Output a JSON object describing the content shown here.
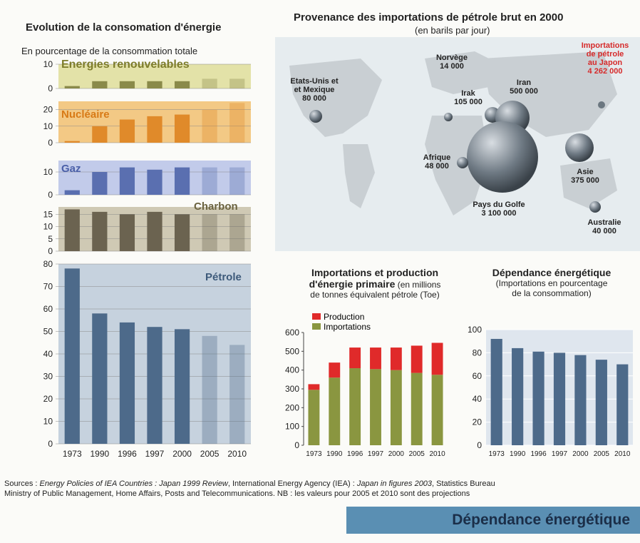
{
  "left": {
    "title": "Evolution de la consomation d'énergie",
    "subtitle": "En pourcentage de la consommation totale",
    "panels": {
      "renouvelables": "Energies renouvelables",
      "nucleaire": "Nucléaire",
      "gaz": "Gaz",
      "charbon": "Charbon",
      "petrole": "Pétrole"
    }
  },
  "map": {
    "title": "Provenance des importations de pétrole brut en 2000",
    "subtitle": "(en barils par jour)",
    "labels": {
      "etats_unis": [
        "Etats-Unis et",
        "et Mexique",
        "80 000"
      ],
      "norvege": [
        "Norvège",
        "14 000"
      ],
      "iran": [
        "Iran",
        "500 000"
      ],
      "irak": [
        "Irak",
        "105 000"
      ],
      "japon": [
        "Importations",
        "de pétrole",
        "au Japon",
        "4 262 000"
      ],
      "afrique": [
        "Afrique",
        "48 000"
      ],
      "asie": [
        "Asie",
        "375 000"
      ],
      "golfe": [
        "Pays du Golfe",
        "3 100 000"
      ],
      "australie": [
        "Australie",
        "40 000"
      ]
    }
  },
  "mid": {
    "title1": "Importations et production",
    "title2a": "d'énergie primaire",
    "title2b": " (en millions",
    "title3": "de tonnes équivalent pétrole (Toe)",
    "legend_production": "Production",
    "legend_importations": "Importations"
  },
  "right": {
    "title": "Dépendance énergétique",
    "sub1": "(Importations en pourcentage",
    "sub2": "de la consommation)"
  },
  "sources": {
    "line1_a": "Sources : ",
    "line1_b": "Energy Policies of IEA Countries : Japan 1999 Review",
    "line1_c": ", International Energy Agency (IEA) : ",
    "line1_d": "Japan in figures 2003",
    "line1_e": ", Statistics Bureau",
    "line2": "Ministry of Public Management, Home Affairs, Posts and Telecommunications. NB : les valeurs pour 2005 et 2010 sont des projections"
  },
  "banner": "Dépendance énergétique",
  "colors": {
    "renouvelables": "#8a8a4a",
    "nucleaire": "#e08a2a",
    "gaz": "#5a6fb0",
    "charbon": "#6b6350",
    "petrole": "#4d6a8a",
    "production": "#e02a2a",
    "importations": "#8a9640",
    "dependance": "#4d6a8a",
    "japon_label": "#d62a2a"
  },
  "chart_data": [
    {
      "type": "bar",
      "title": "Energies renouvelables",
      "categories": [
        "1973",
        "1990",
        "1996",
        "1997",
        "2000",
        "2005",
        "2010"
      ],
      "values": [
        1,
        3,
        3,
        3,
        3,
        4,
        4
      ],
      "ylim": [
        0,
        10
      ],
      "yticks": [
        0,
        10
      ],
      "projected_from_index": 5
    },
    {
      "type": "bar",
      "title": "Nucléaire",
      "categories": [
        "1973",
        "1990",
        "1996",
        "1997",
        "2000",
        "2005",
        "2010"
      ],
      "values": [
        1,
        10,
        14,
        16,
        17,
        20,
        24
      ],
      "ylim": [
        0,
        25
      ],
      "yticks": [
        0,
        10,
        20
      ],
      "projected_from_index": 5
    },
    {
      "type": "bar",
      "title": "Gaz",
      "categories": [
        "1973",
        "1990",
        "1996",
        "1997",
        "2000",
        "2005",
        "2010"
      ],
      "values": [
        2,
        10,
        12,
        11,
        12,
        12,
        12
      ],
      "ylim": [
        0,
        15
      ],
      "yticks": [
        0,
        10
      ],
      "projected_from_index": 5
    },
    {
      "type": "bar",
      "title": "Charbon",
      "categories": [
        "1973",
        "1990",
        "1996",
        "1997",
        "2000",
        "2005",
        "2010"
      ],
      "values": [
        17,
        16,
        15,
        16,
        15,
        15,
        15
      ],
      "ylim": [
        0,
        18
      ],
      "yticks": [
        0,
        5,
        10,
        15
      ],
      "projected_from_index": 5
    },
    {
      "type": "bar",
      "title": "Pétrole",
      "categories": [
        "1973",
        "1990",
        "1996",
        "1997",
        "2000",
        "2005",
        "2010"
      ],
      "values": [
        78,
        58,
        54,
        52,
        51,
        48,
        44
      ],
      "ylim": [
        0,
        80
      ],
      "yticks": [
        0,
        10,
        20,
        30,
        40,
        50,
        60,
        70,
        80
      ],
      "projected_from_index": 5
    },
    {
      "type": "bar",
      "stacked": true,
      "title": "Importations et production d'énergie primaire (en millions de tonnes équivalent pétrole (Toe)",
      "categories": [
        "1973",
        "1990",
        "1996",
        "1997",
        "2000",
        "2005",
        "2010"
      ],
      "series": [
        {
          "name": "Importations",
          "values": [
            295,
            360,
            410,
            405,
            400,
            385,
            375
          ]
        },
        {
          "name": "Production",
          "values": [
            30,
            80,
            110,
            115,
            120,
            145,
            170
          ]
        }
      ],
      "ylim": [
        0,
        600
      ],
      "yticks": [
        0,
        100,
        200,
        300,
        400,
        500,
        600
      ]
    },
    {
      "type": "bar",
      "title": "Dépendance énergétique (Importations en pourcentage de la consommation)",
      "categories": [
        "1973",
        "1990",
        "1996",
        "1997",
        "2000",
        "2005",
        "2010"
      ],
      "values": [
        92,
        84,
        81,
        80,
        78,
        74,
        70
      ],
      "ylim": [
        0,
        100
      ],
      "yticks": [
        0,
        20,
        40,
        60,
        80,
        100
      ]
    }
  ]
}
